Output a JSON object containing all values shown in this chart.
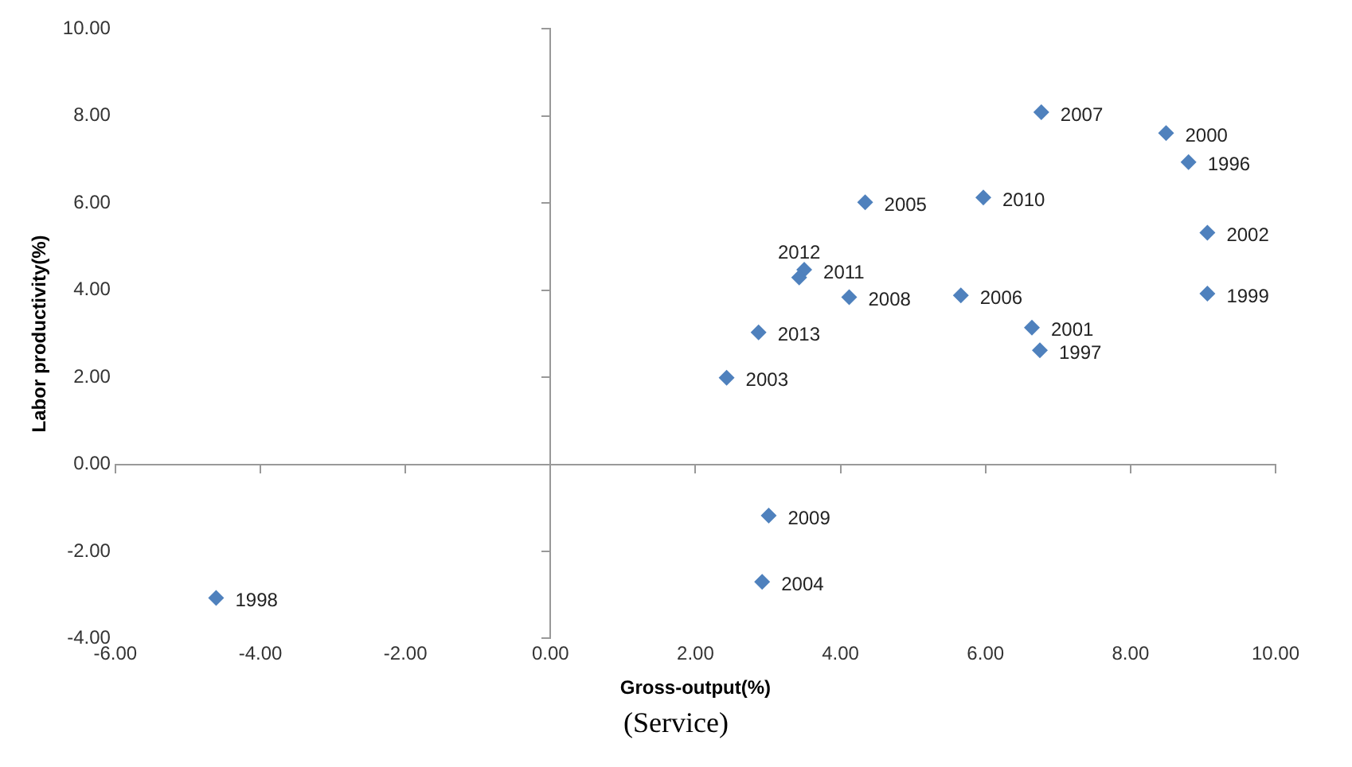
{
  "chart_data": {
    "type": "scatter",
    "xlabel": "Gross-output(%)",
    "ylabel": "Labor productivity(%)",
    "x": [
      8.8,
      6.75,
      -4.61,
      9.06,
      8.49,
      6.64,
      9.06,
      2.43,
      2.92,
      4.34,
      5.66,
      6.77,
      4.12,
      3.01,
      5.97,
      3.5,
      3.43,
      2.87
    ],
    "series": [
      {
        "color": "#4f81bd",
        "values": [
          6.94,
          2.62,
          -3.07,
          3.92,
          7.61,
          3.14,
          5.32,
          1.99,
          -2.7,
          6.02,
          3.88,
          8.09,
          3.84,
          -1.18,
          6.13,
          4.47,
          4.29,
          3.03
        ]
      }
    ],
    "annotations": [
      {
        "text": "1996",
        "x": 8.8,
        "y": 6.94
      },
      {
        "text": "1997",
        "x": 6.75,
        "y": 2.62
      },
      {
        "text": "1998",
        "x": -4.61,
        "y": -3.07
      },
      {
        "text": "1999",
        "x": 9.06,
        "y": 3.92
      },
      {
        "text": "2000",
        "x": 8.49,
        "y": 7.61
      },
      {
        "text": "2001",
        "x": 6.64,
        "y": 3.14
      },
      {
        "text": "2002",
        "x": 9.06,
        "y": 5.32
      },
      {
        "text": "2003",
        "x": 2.43,
        "y": 1.99
      },
      {
        "text": "2004",
        "x": 2.92,
        "y": -2.7
      },
      {
        "text": "2005",
        "x": 4.34,
        "y": 6.02
      },
      {
        "text": "2006",
        "x": 5.66,
        "y": 3.88
      },
      {
        "text": "2007",
        "x": 6.77,
        "y": 8.09
      },
      {
        "text": "2008",
        "x": 4.12,
        "y": 3.84
      },
      {
        "text": "2009",
        "x": 3.01,
        "y": -1.18
      },
      {
        "text": "2010",
        "x": 5.97,
        "y": 6.13
      },
      {
        "text": "2011",
        "x": 3.5,
        "y": 4.47
      },
      {
        "text": "2012",
        "x": 3.43,
        "y": 4.29
      },
      {
        "text": "2013",
        "x": 2.87,
        "y": 3.03
      },
      "(Service)"
    ],
    "xlim": [
      -6,
      10
    ],
    "xticks": [
      {
        "value": -6,
        "label": "-6.00"
      },
      {
        "value": -4,
        "label": "-4.00"
      },
      {
        "value": -2,
        "label": "-2.00"
      },
      {
        "value": 0,
        "label": "0.00"
      },
      {
        "value": 2,
        "label": "2.00"
      },
      {
        "value": 4,
        "label": "4.00"
      },
      {
        "value": 6,
        "label": "6.00"
      },
      {
        "value": 8,
        "label": "8.00"
      },
      {
        "value": 10,
        "label": "10.00"
      }
    ],
    "ylim": [
      -4,
      10
    ],
    "yticks": [
      {
        "value": -4,
        "label": "-4.00"
      },
      {
        "value": -2,
        "label": "-2.00"
      },
      {
        "value": 0,
        "label": "0.00"
      },
      {
        "value": 2,
        "label": "2.00"
      },
      {
        "value": 4,
        "label": "4.00"
      },
      {
        "value": 6,
        "label": "6.00"
      },
      {
        "value": 8,
        "label": "8.00"
      },
      {
        "value": 10,
        "label": "10.00"
      }
    ],
    "marker": "diamond",
    "legend": false
  }
}
